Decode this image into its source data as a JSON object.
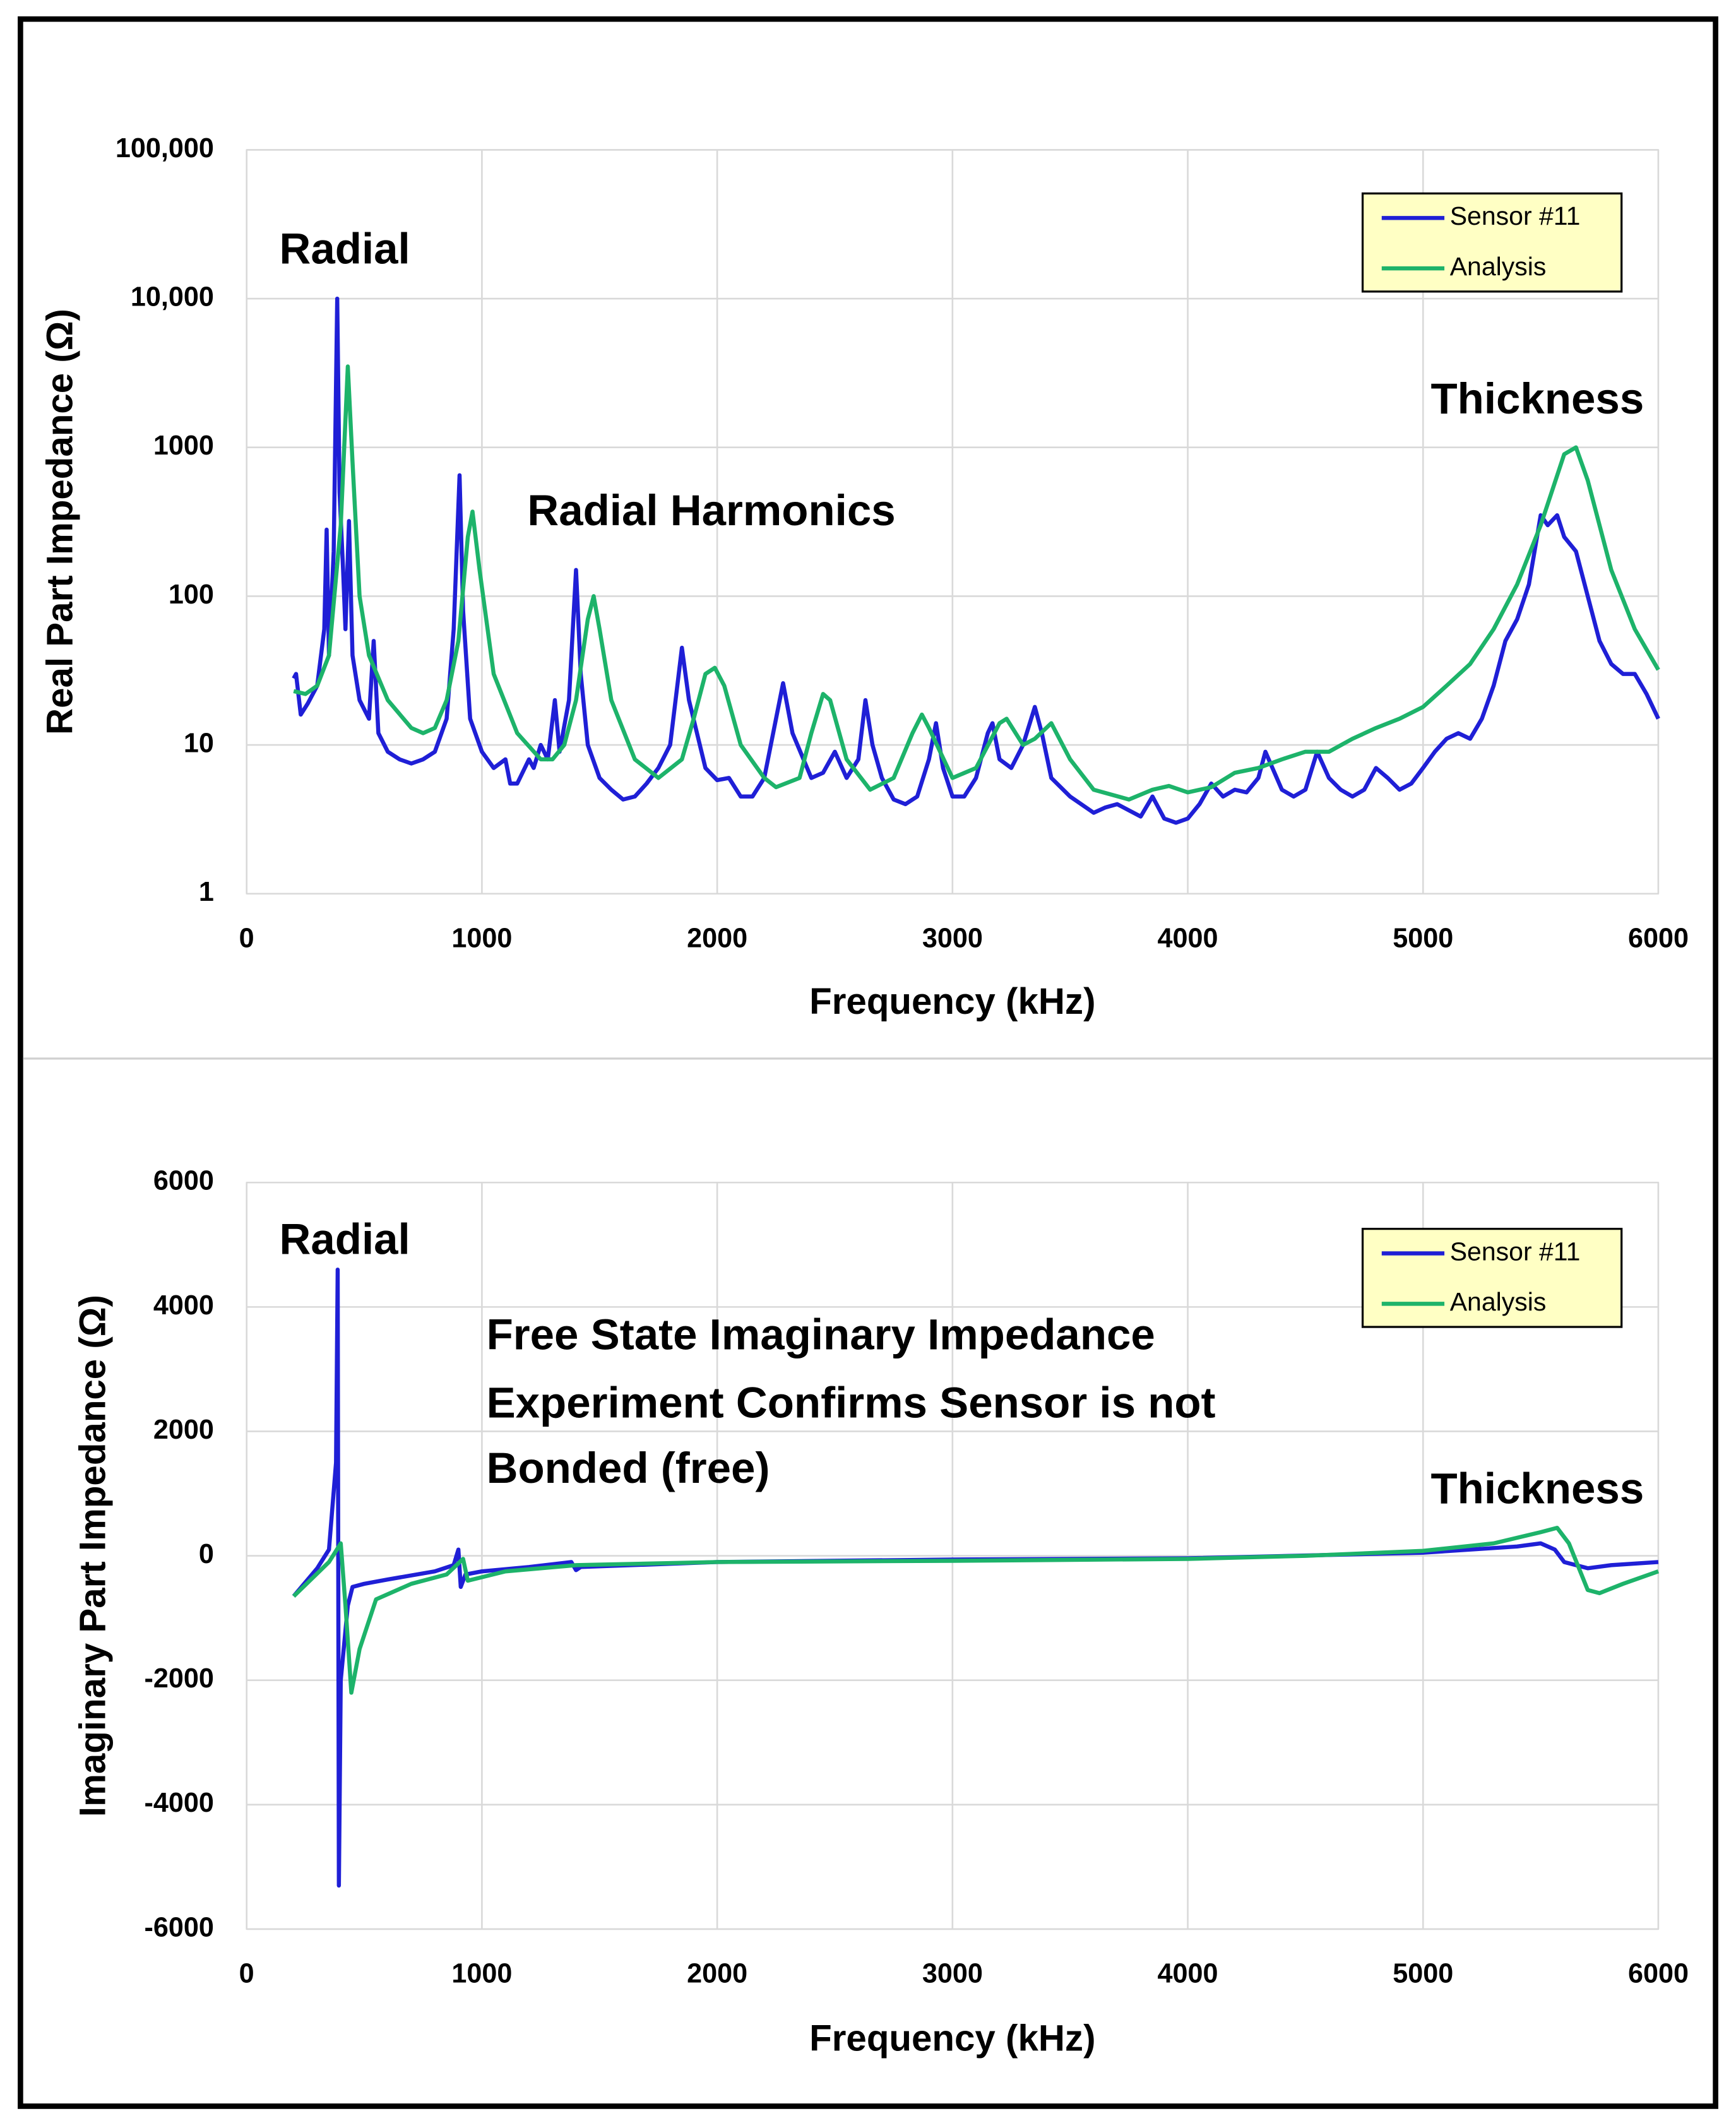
{
  "chart_data": [
    {
      "type": "line",
      "ylabel": "Real Part Impedance (Ω)",
      "xlabel": "Frequency (kHz)",
      "log_y": true,
      "grid": true,
      "legend": "upper right",
      "xlim": [
        0,
        6000
      ],
      "xticks": [
        0,
        1000,
        2000,
        3000,
        4000,
        5000,
        6000
      ],
      "ylim": [
        1,
        100000
      ],
      "yticks": [
        1,
        10,
        100,
        1000,
        {
          "value": 10000,
          "label": "10,000"
        },
        {
          "value": 100000,
          "label": "100,000"
        }
      ],
      "annotations": [
        "Radial",
        "Radial Harmonics",
        "Thickness"
      ],
      "series": [
        {
          "name": "Sensor #11",
          "color": "#1f1fd6",
          "x": [
            200,
            210,
            230,
            260,
            300,
            330,
            340,
            350,
            370,
            385,
            395,
            410,
            420,
            435,
            450,
            480,
            520,
            540,
            560,
            600,
            650,
            700,
            750,
            800,
            850,
            880,
            905,
            920,
            950,
            1000,
            1050,
            1100,
            1120,
            1150,
            1200,
            1220,
            1250,
            1280,
            1310,
            1330,
            1370,
            1400,
            1420,
            1450,
            1500,
            1550,
            1600,
            1650,
            1700,
            1750,
            1800,
            1850,
            1880,
            1950,
            2000,
            2050,
            2100,
            2150,
            2200,
            2250,
            2280,
            2320,
            2400,
            2450,
            2500,
            2550,
            2600,
            2630,
            2660,
            2700,
            2750,
            2800,
            2850,
            2900,
            2930,
            2960,
            3000,
            3050,
            3100,
            3150,
            3170,
            3200,
            3250,
            3300,
            3350,
            3380,
            3420,
            3500,
            3600,
            3650,
            3700,
            3800,
            3850,
            3900,
            3950,
            4000,
            4050,
            4100,
            4150,
            4200,
            4250,
            4300,
            4330,
            4400,
            4450,
            4500,
            4550,
            4600,
            4650,
            4700,
            4750,
            4800,
            4850,
            4900,
            4950,
            5000,
            5050,
            5100,
            5150,
            5200,
            5250,
            5300,
            5350,
            5400,
            5450,
            5500,
            5530,
            5570,
            5600,
            5650,
            5700,
            5750,
            5800,
            5850,
            5900,
            5950,
            6000
          ],
          "values": [
            28,
            30,
            16,
            19,
            25,
            60,
            280,
            40,
            200,
            10000,
            500,
            150,
            60,
            320,
            40,
            20,
            15,
            50,
            12,
            9,
            8,
            7.5,
            8,
            9,
            15,
            60,
            650,
            80,
            15,
            9,
            7,
            8,
            5.5,
            5.5,
            8,
            7,
            10,
            8,
            20,
            9,
            20,
            150,
            30,
            10,
            6,
            5,
            4.3,
            4.5,
            5.5,
            7,
            10,
            45,
            20,
            7,
            5.8,
            6,
            4.5,
            4.5,
            6,
            15,
            26,
            12,
            6,
            6.5,
            9,
            6,
            8,
            20,
            10,
            6,
            4.3,
            4,
            4.5,
            8,
            14,
            7,
            4.5,
            4.5,
            6,
            12,
            14,
            8,
            7,
            10,
            18,
            12,
            6,
            4.5,
            3.5,
            3.8,
            4,
            3.3,
            4.5,
            3.2,
            3,
            3.2,
            4,
            5.5,
            4.5,
            5,
            4.8,
            6,
            9,
            5,
            4.5,
            5,
            9,
            6,
            5,
            4.5,
            5,
            7,
            6,
            5,
            5.5,
            7,
            9,
            11,
            12,
            11,
            15,
            25,
            50,
            70,
            120,
            350,
            300,
            350,
            250,
            200,
            100,
            50,
            35,
            30,
            30,
            22,
            15
          ]
        },
        {
          "name": "Analysis",
          "color": "#1db36a",
          "x": [
            200,
            250,
            300,
            350,
            400,
            430,
            450,
            480,
            520,
            600,
            700,
            750,
            800,
            850,
            900,
            940,
            960,
            990,
            1050,
            1150,
            1250,
            1300,
            1350,
            1400,
            1450,
            1475,
            1500,
            1550,
            1650,
            1750,
            1850,
            1900,
            1950,
            1990,
            2030,
            2100,
            2200,
            2250,
            2350,
            2400,
            2450,
            2480,
            2550,
            2650,
            2750,
            2830,
            2870,
            2900,
            3000,
            3100,
            3200,
            3230,
            3300,
            3350,
            3420,
            3500,
            3600,
            3750,
            3850,
            3920,
            4000,
            4100,
            4200,
            4300,
            4400,
            4500,
            4600,
            4700,
            4800,
            4900,
            5000,
            5100,
            5200,
            5300,
            5400,
            5500,
            5600,
            5650,
            5700,
            5800,
            5900,
            6000
          ],
          "values": [
            23,
            22,
            25,
            40,
            300,
            3500,
            800,
            100,
            40,
            20,
            13,
            12,
            13,
            20,
            50,
            250,
            370,
            150,
            30,
            12,
            8,
            8,
            10,
            20,
            70,
            100,
            60,
            20,
            8,
            6,
            8,
            15,
            30,
            33,
            25,
            10,
            6,
            5.2,
            6,
            12,
            22,
            20,
            8,
            5,
            6,
            12,
            16,
            13,
            6,
            7,
            14,
            15,
            10,
            11,
            14,
            8,
            5,
            4.3,
            5,
            5.3,
            4.8,
            5.2,
            6.5,
            7,
            8,
            9,
            9,
            11,
            13,
            15,
            18,
            25,
            35,
            60,
            120,
            300,
            900,
            1000,
            600,
            150,
            60,
            32
          ]
        }
      ]
    },
    {
      "type": "line",
      "ylabel": "Imaginary Part Impedance (Ω)",
      "xlabel": "Frequency (kHz)",
      "log_y": false,
      "grid": true,
      "legend": "upper right",
      "xlim": [
        0,
        6000
      ],
      "xticks": [
        0,
        1000,
        2000,
        3000,
        4000,
        5000,
        6000
      ],
      "ylim": [
        -6000,
        6000
      ],
      "yticks": [
        -6000,
        -4000,
        -2000,
        0,
        2000,
        4000,
        6000
      ],
      "annotations": [
        "Radial",
        "Free State Imaginary Impedance",
        "Experiment Confirms Sensor is not",
        "Bonded (free)",
        "Thickness"
      ],
      "series": [
        {
          "name": "Sensor #11",
          "color": "#1f1fd6",
          "x": [
            200,
            300,
            350,
            380,
            387,
            392,
            400,
            430,
            450,
            500,
            600,
            800,
            880,
            900,
            910,
            930,
            1000,
            1200,
            1380,
            1400,
            1420,
            2000,
            3000,
            4000,
            5000,
            5400,
            5500,
            5560,
            5600,
            5700,
            5800,
            6000
          ],
          "values": [
            -650,
            -200,
            100,
            1500,
            4600,
            -5300,
            -2000,
            -800,
            -500,
            -450,
            -380,
            -250,
            -150,
            100,
            -500,
            -300,
            -250,
            -180,
            -100,
            -230,
            -180,
            -100,
            -60,
            -40,
            50,
            150,
            200,
            100,
            -100,
            -200,
            -150,
            -100
          ]
        },
        {
          "name": "Analysis",
          "color": "#1db36a",
          "x": [
            200,
            350,
            400,
            420,
            445,
            480,
            550,
            700,
            850,
            920,
            940,
            1100,
            1400,
            2000,
            3000,
            4000,
            4500,
            5000,
            5300,
            5500,
            5570,
            5620,
            5700,
            5750,
            5850,
            6000
          ],
          "values": [
            -650,
            -100,
            200,
            -800,
            -2200,
            -1500,
            -700,
            -450,
            -300,
            -50,
            -400,
            -250,
            -150,
            -100,
            -80,
            -50,
            0,
            80,
            200,
            380,
            450,
            200,
            -550,
            -600,
            -450,
            -250
          ]
        }
      ]
    }
  ]
}
